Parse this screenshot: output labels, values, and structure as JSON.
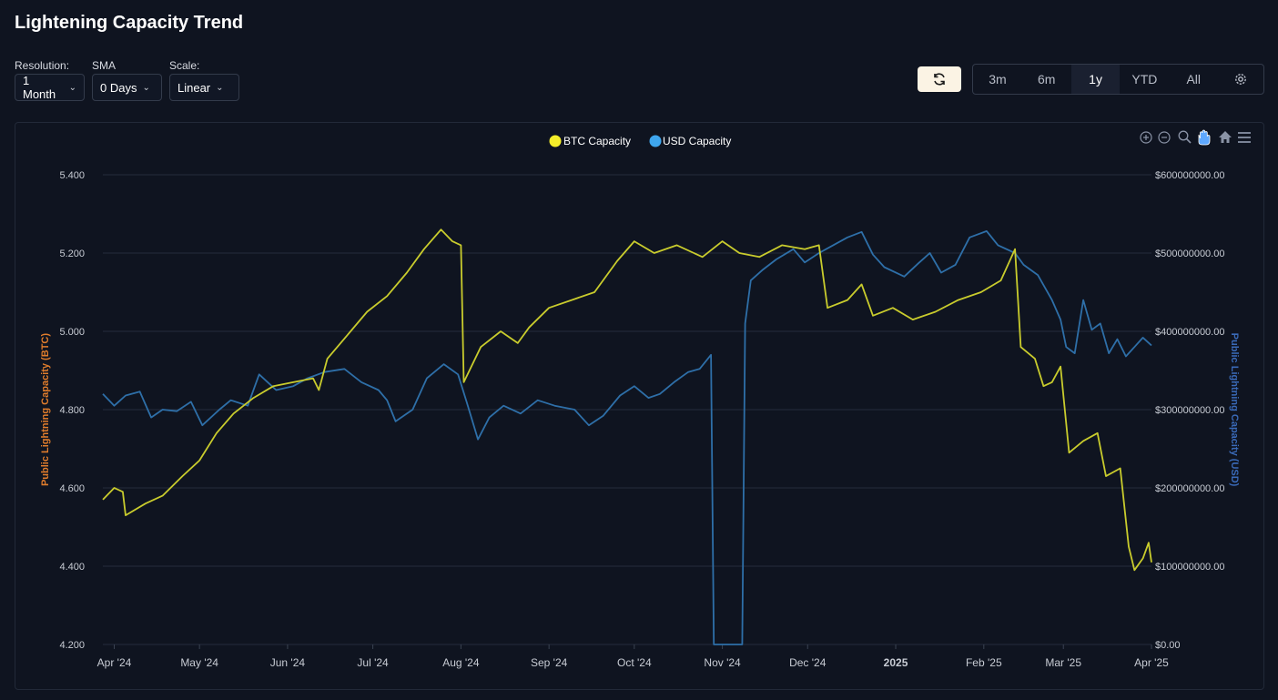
{
  "page": {
    "title": "Lightening Capacity Trend"
  },
  "controls": {
    "resolution": {
      "label": "Resolution:",
      "value": "1 Month"
    },
    "sma": {
      "label": "SMA",
      "value": "0 Days"
    },
    "scale": {
      "label": "Scale:",
      "value": "Linear"
    }
  },
  "range_buttons": [
    "3m",
    "6m",
    "1y",
    "YTD",
    "All"
  ],
  "active_range": "1y",
  "toolbar_icons": [
    "zoom-in-icon",
    "zoom-out-icon",
    "magnify-icon",
    "pan-hand-icon",
    "home-icon",
    "menu-icon"
  ],
  "colors": {
    "btc": "#c9cc2d",
    "usd": "#2e6fa8",
    "btc_axis_title": "#e07d2c",
    "usd_axis_title": "#3a6ab8",
    "legend_btc": "#f5ee2a",
    "legend_usd": "#3ea6ee"
  },
  "chart_data": {
    "type": "line",
    "legend": [
      "BTC Capacity",
      "USD Capacity"
    ],
    "legend_position": "top-center",
    "grid": true,
    "x_range": [
      "2024-03-28",
      "2025-04-01"
    ],
    "x_ticks": [
      {
        "date": "2024-04-01",
        "label": "Apr '24"
      },
      {
        "date": "2024-05-01",
        "label": "May '24"
      },
      {
        "date": "2024-06-01",
        "label": "Jun '24"
      },
      {
        "date": "2024-07-01",
        "label": "Jul '24"
      },
      {
        "date": "2024-08-01",
        "label": "Aug '24"
      },
      {
        "date": "2024-09-01",
        "label": "Sep '24"
      },
      {
        "date": "2024-10-01",
        "label": "Oct '24"
      },
      {
        "date": "2024-11-01",
        "label": "Nov '24"
      },
      {
        "date": "2024-12-01",
        "label": "Dec '24"
      },
      {
        "date": "2025-01-01",
        "label": "2025",
        "bold": true
      },
      {
        "date": "2025-02-01",
        "label": "Feb '25"
      },
      {
        "date": "2025-03-01",
        "label": "Mar '25"
      },
      {
        "date": "2025-04-01",
        "label": "Apr '25"
      }
    ],
    "y_left": {
      "label": "Public Lightning Capacity (BTC)",
      "min": 4.2,
      "max": 5.4,
      "ticks": [
        "4.200",
        "4.400",
        "4.600",
        "4.800",
        "5.000",
        "5.200",
        "5.400"
      ]
    },
    "y_right": {
      "label": "Public Lightning Capacity (USD)",
      "min": 0,
      "max": 600000000,
      "ticks": [
        "$0.00",
        "$100000000.00",
        "$200000000.00",
        "$300000000.00",
        "$400000000.00",
        "$500000000.00",
        "$600000000.00"
      ]
    },
    "series": [
      {
        "name": "BTC Capacity",
        "axis": "left",
        "points": [
          [
            "2024-03-28",
            4.57
          ],
          [
            "2024-04-01",
            4.6
          ],
          [
            "2024-04-04",
            4.59
          ],
          [
            "2024-04-05",
            4.53
          ],
          [
            "2024-04-12",
            4.56
          ],
          [
            "2024-04-18",
            4.58
          ],
          [
            "2024-04-25",
            4.63
          ],
          [
            "2024-05-01",
            4.67
          ],
          [
            "2024-05-07",
            4.74
          ],
          [
            "2024-05-13",
            4.79
          ],
          [
            "2024-05-20",
            4.83
          ],
          [
            "2024-05-27",
            4.86
          ],
          [
            "2024-06-03",
            4.87
          ],
          [
            "2024-06-10",
            4.88
          ],
          [
            "2024-06-12",
            4.85
          ],
          [
            "2024-06-15",
            4.93
          ],
          [
            "2024-06-22",
            4.99
          ],
          [
            "2024-06-29",
            5.05
          ],
          [
            "2024-07-06",
            5.09
          ],
          [
            "2024-07-13",
            5.15
          ],
          [
            "2024-07-19",
            5.21
          ],
          [
            "2024-07-25",
            5.26
          ],
          [
            "2024-07-29",
            5.23
          ],
          [
            "2024-08-01",
            5.22
          ],
          [
            "2024-08-02",
            4.87
          ],
          [
            "2024-08-08",
            4.96
          ],
          [
            "2024-08-15",
            5.0
          ],
          [
            "2024-08-21",
            4.97
          ],
          [
            "2024-08-25",
            5.01
          ],
          [
            "2024-09-01",
            5.06
          ],
          [
            "2024-09-09",
            5.08
          ],
          [
            "2024-09-17",
            5.1
          ],
          [
            "2024-09-25",
            5.18
          ],
          [
            "2024-10-01",
            5.23
          ],
          [
            "2024-10-08",
            5.2
          ],
          [
            "2024-10-16",
            5.22
          ],
          [
            "2024-10-25",
            5.19
          ],
          [
            "2024-11-01",
            5.23
          ],
          [
            "2024-11-07",
            5.2
          ],
          [
            "2024-11-14",
            5.19
          ],
          [
            "2024-11-22",
            5.22
          ],
          [
            "2024-11-30",
            5.21
          ],
          [
            "2024-12-05",
            5.22
          ],
          [
            "2024-12-08",
            5.06
          ],
          [
            "2024-12-15",
            5.08
          ],
          [
            "2024-12-20",
            5.12
          ],
          [
            "2024-12-24",
            5.04
          ],
          [
            "2024-12-31",
            5.06
          ],
          [
            "2025-01-07",
            5.03
          ],
          [
            "2025-01-15",
            5.05
          ],
          [
            "2025-01-23",
            5.08
          ],
          [
            "2025-01-31",
            5.1
          ],
          [
            "2025-02-07",
            5.13
          ],
          [
            "2025-02-12",
            5.21
          ],
          [
            "2025-02-14",
            4.96
          ],
          [
            "2025-02-19",
            4.93
          ],
          [
            "2025-02-22",
            4.86
          ],
          [
            "2025-02-25",
            4.87
          ],
          [
            "2025-02-28",
            4.91
          ],
          [
            "2025-03-03",
            4.69
          ],
          [
            "2025-03-08",
            4.72
          ],
          [
            "2025-03-13",
            4.74
          ],
          [
            "2025-03-16",
            4.63
          ],
          [
            "2025-03-21",
            4.65
          ],
          [
            "2025-03-24",
            4.45
          ],
          [
            "2025-03-26",
            4.39
          ],
          [
            "2025-03-29",
            4.42
          ],
          [
            "2025-03-31",
            4.46
          ],
          [
            "2025-04-01",
            4.41
          ]
        ]
      },
      {
        "name": "USD Capacity",
        "axis": "right",
        "points": [
          [
            "2024-03-28",
            320000000
          ],
          [
            "2024-04-01",
            305000000
          ],
          [
            "2024-04-05",
            318000000
          ],
          [
            "2024-04-10",
            323000000
          ],
          [
            "2024-04-14",
            290000000
          ],
          [
            "2024-04-18",
            300000000
          ],
          [
            "2024-04-23",
            298000000
          ],
          [
            "2024-04-28",
            310000000
          ],
          [
            "2024-05-02",
            280000000
          ],
          [
            "2024-05-08",
            300000000
          ],
          [
            "2024-05-12",
            312000000
          ],
          [
            "2024-05-18",
            305000000
          ],
          [
            "2024-05-22",
            345000000
          ],
          [
            "2024-05-28",
            325000000
          ],
          [
            "2024-06-03",
            330000000
          ],
          [
            "2024-06-08",
            340000000
          ],
          [
            "2024-06-14",
            348000000
          ],
          [
            "2024-06-21",
            352000000
          ],
          [
            "2024-06-27",
            335000000
          ],
          [
            "2024-07-03",
            325000000
          ],
          [
            "2024-07-06",
            312000000
          ],
          [
            "2024-07-09",
            285000000
          ],
          [
            "2024-07-15",
            300000000
          ],
          [
            "2024-07-20",
            340000000
          ],
          [
            "2024-07-26",
            358000000
          ],
          [
            "2024-07-31",
            345000000
          ],
          [
            "2024-08-03",
            310000000
          ],
          [
            "2024-08-07",
            262000000
          ],
          [
            "2024-08-11",
            290000000
          ],
          [
            "2024-08-16",
            305000000
          ],
          [
            "2024-08-22",
            295000000
          ],
          [
            "2024-08-28",
            312000000
          ],
          [
            "2024-09-03",
            305000000
          ],
          [
            "2024-09-10",
            300000000
          ],
          [
            "2024-09-15",
            280000000
          ],
          [
            "2024-09-20",
            292000000
          ],
          [
            "2024-09-26",
            318000000
          ],
          [
            "2024-10-01",
            330000000
          ],
          [
            "2024-10-06",
            315000000
          ],
          [
            "2024-10-10",
            320000000
          ],
          [
            "2024-10-15",
            335000000
          ],
          [
            "2024-10-20",
            348000000
          ],
          [
            "2024-10-24",
            352000000
          ],
          [
            "2024-10-28",
            370000000
          ],
          [
            "2024-10-29",
            0
          ],
          [
            "2024-11-08",
            0
          ],
          [
            "2024-11-09",
            410000000
          ],
          [
            "2024-11-11",
            465000000
          ],
          [
            "2024-11-15",
            478000000
          ],
          [
            "2024-11-20",
            492000000
          ],
          [
            "2024-11-26",
            505000000
          ],
          [
            "2024-11-30",
            488000000
          ],
          [
            "2024-12-05",
            500000000
          ],
          [
            "2024-12-10",
            510000000
          ],
          [
            "2024-12-15",
            520000000
          ],
          [
            "2024-12-20",
            527000000
          ],
          [
            "2024-12-24",
            498000000
          ],
          [
            "2024-12-28",
            482000000
          ],
          [
            "2025-01-04",
            470000000
          ],
          [
            "2025-01-09",
            487000000
          ],
          [
            "2025-01-13",
            500000000
          ],
          [
            "2025-01-17",
            475000000
          ],
          [
            "2025-01-22",
            485000000
          ],
          [
            "2025-01-27",
            520000000
          ],
          [
            "2025-02-02",
            528000000
          ],
          [
            "2025-02-06",
            510000000
          ],
          [
            "2025-02-12",
            500000000
          ],
          [
            "2025-02-15",
            485000000
          ],
          [
            "2025-02-20",
            472000000
          ],
          [
            "2025-02-25",
            440000000
          ],
          [
            "2025-02-28",
            415000000
          ],
          [
            "2025-03-02",
            380000000
          ],
          [
            "2025-03-05",
            372000000
          ],
          [
            "2025-03-08",
            440000000
          ],
          [
            "2025-03-11",
            402000000
          ],
          [
            "2025-03-14",
            410000000
          ],
          [
            "2025-03-17",
            372000000
          ],
          [
            "2025-03-20",
            390000000
          ],
          [
            "2025-03-23",
            368000000
          ],
          [
            "2025-03-26",
            380000000
          ],
          [
            "2025-03-29",
            392000000
          ],
          [
            "2025-04-01",
            382000000
          ]
        ]
      }
    ]
  }
}
